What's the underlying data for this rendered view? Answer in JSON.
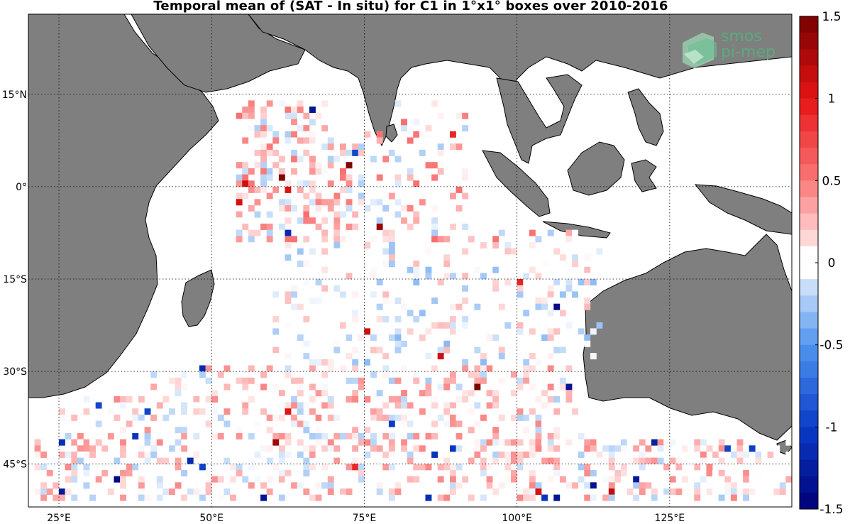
{
  "title": "Temporal mean of (SAT - In situ) for C1 in 1°x1° boxes over 2010-2016",
  "logo": {
    "line1": "smos",
    "line2": "pi-mep"
  },
  "lon_ticks": [
    "25°E",
    "50°E",
    "75°E",
    "100°E",
    "125°E"
  ],
  "lat_ticks": [
    "15°N",
    "0°",
    "15°S",
    "30°S",
    "45°S"
  ],
  "lon_range": [
    20,
    145
  ],
  "lat_range": [
    -52,
    28
  ],
  "lon_tick_values": [
    25,
    50,
    75,
    100,
    125
  ],
  "lat_tick_values": [
    15,
    0,
    -15,
    -30,
    -45
  ],
  "colorbar": {
    "ticks": [
      "1.5",
      "1",
      "0.5",
      "0",
      "-0.5",
      "-1",
      "-1.5"
    ],
    "tick_values": [
      1.5,
      1,
      0.5,
      0,
      -0.5,
      -1,
      -1.5
    ],
    "range": [
      -1.5,
      1.5
    ]
  },
  "colors": {
    "land": "#7f7f7f",
    "coast": "#000000",
    "ocean": "#ffffff"
  }
}
